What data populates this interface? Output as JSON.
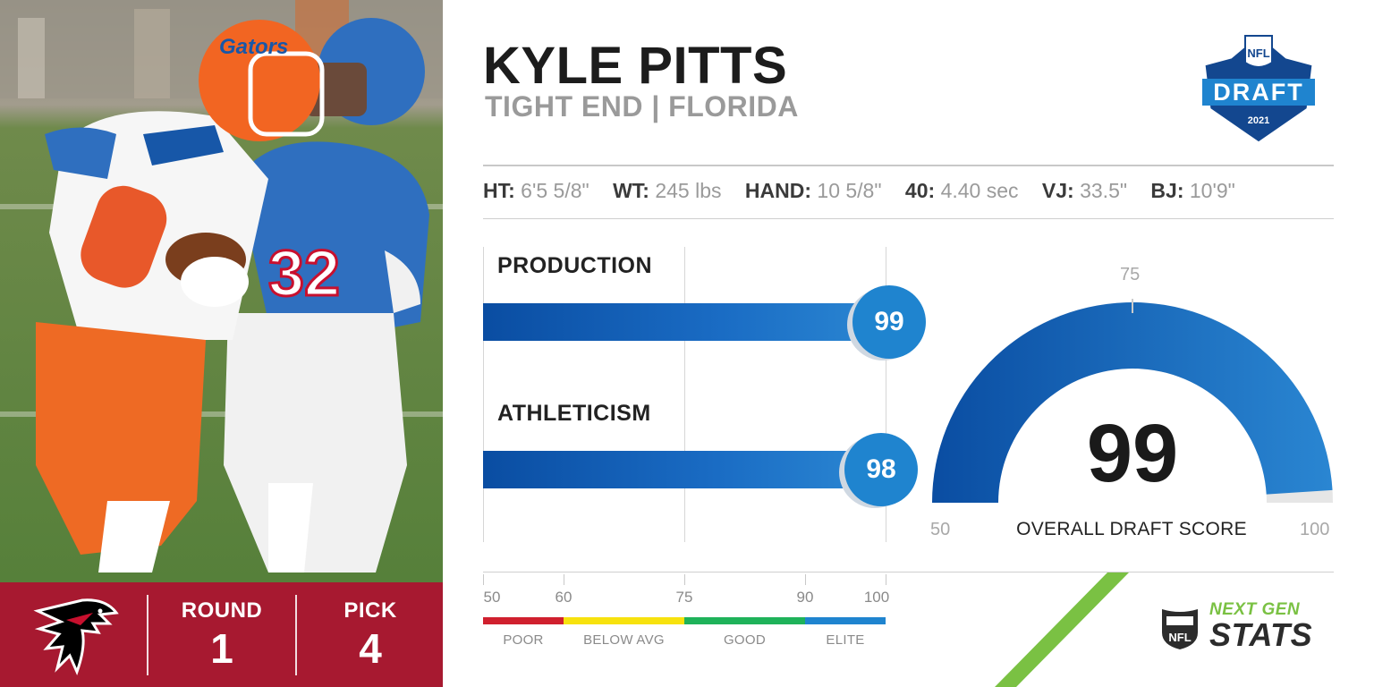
{
  "player": {
    "name": "KYLE PITTS",
    "subtitle": "TIGHT END | FLORIDA"
  },
  "measurements": [
    {
      "key": "HT:",
      "value": "6'5 5/8\""
    },
    {
      "key": "WT:",
      "value": "245 lbs"
    },
    {
      "key": "HAND:",
      "value": "10 5/8\""
    },
    {
      "key": "40:",
      "value": "4.40 sec"
    },
    {
      "key": "VJ:",
      "value": "33.5\""
    },
    {
      "key": "BJ:",
      "value": "10'9\""
    }
  ],
  "draft_slot": {
    "round_label": "ROUND",
    "round_value": "1",
    "pick_label": "PICK",
    "pick_value": "4"
  },
  "draft_logo": {
    "top": "NFL",
    "word": "DRAFT",
    "year": "2021"
  },
  "scores": {
    "production": {
      "label": "PRODUCTION",
      "value": 99
    },
    "athleticism": {
      "label": "ATHLETICISM",
      "value": 98
    },
    "scale_min": 50,
    "scale_max": 100
  },
  "overall": {
    "value": "99",
    "caption": "OVERALL DRAFT SCORE",
    "min_label": "50",
    "mid_label": "75",
    "max_label": "100",
    "score": 99
  },
  "legend": {
    "ticks": [
      "50",
      "60",
      "75",
      "90",
      "100"
    ],
    "bands": [
      {
        "label": "POOR",
        "from": 50,
        "to": 60,
        "color": "#d0202e"
      },
      {
        "label": "BELOW AVG",
        "from": 60,
        "to": 75,
        "color": "#f7e20e"
      },
      {
        "label": "GOOD",
        "from": 75,
        "to": 90,
        "color": "#1fb25a"
      },
      {
        "label": "ELITE",
        "from": 90,
        "to": 100,
        "color": "#1f84cf"
      }
    ]
  },
  "branding": {
    "ngs_top": "NEXT GEN",
    "ngs_bottom": "STATS",
    "team_color": "#a71930",
    "accent_blue": "#1f84cf",
    "ngs_green": "#7ac143"
  }
}
